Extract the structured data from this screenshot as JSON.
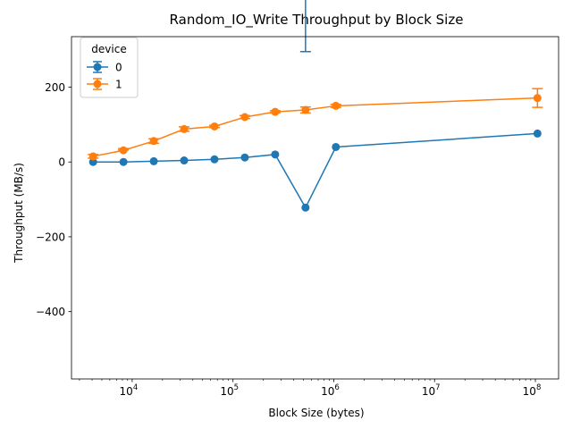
{
  "chart_data": {
    "type": "line",
    "title": "Random_IO_Write Throughput by Block Size",
    "xlabel": "Block Size (bytes)",
    "ylabel": "Throughput (MB/s)",
    "xscale": "log",
    "xlim": [
      2500,
      170000000
    ],
    "ylim": [
      -580,
      335
    ],
    "x_ticks": [
      10000,
      100000,
      1000000,
      10000000,
      100000000
    ],
    "x_tick_labels": [
      {
        "base": "10",
        "exp": "4"
      },
      {
        "base": "10",
        "exp": "5"
      },
      {
        "base": "10",
        "exp": "6"
      },
      {
        "base": "10",
        "exp": "7"
      },
      {
        "base": "10",
        "exp": "8"
      }
    ],
    "y_ticks": [
      -400,
      -200,
      0,
      200
    ],
    "y_tick_labels": [
      "−400",
      "−200",
      "0",
      "200"
    ],
    "grid": false,
    "legend": {
      "title": "device",
      "position": "upper-left"
    },
    "series": [
      {
        "name": "0",
        "color": "#1f77b4",
        "x": [
          4096,
          8192,
          16384,
          32768,
          65536,
          131072,
          262144,
          524288,
          1048576,
          104857600
        ],
        "y": [
          0,
          0,
          2,
          4,
          7,
          12,
          20,
          -122,
          40,
          76
        ],
        "err_low": [
          0,
          0,
          0,
          0,
          0,
          0,
          0,
          538,
          0,
          0
        ],
        "err_high": [
          0,
          0,
          0,
          0,
          0,
          0,
          0,
          295,
          0,
          0
        ]
      },
      {
        "name": "1",
        "color": "#ff7f0e",
        "x": [
          4096,
          8192,
          16384,
          32768,
          65536,
          131072,
          262144,
          524288,
          1048576,
          104857600
        ],
        "y": [
          15,
          31,
          56,
          88,
          95,
          120,
          134,
          139,
          150,
          171
        ],
        "err_low": [
          10,
          32,
          50,
          82,
          92,
          116,
          131,
          131,
          146,
          146
        ],
        "err_high": [
          20,
          36,
          62,
          94,
          98,
          124,
          137,
          147,
          154,
          196
        ]
      }
    ]
  }
}
